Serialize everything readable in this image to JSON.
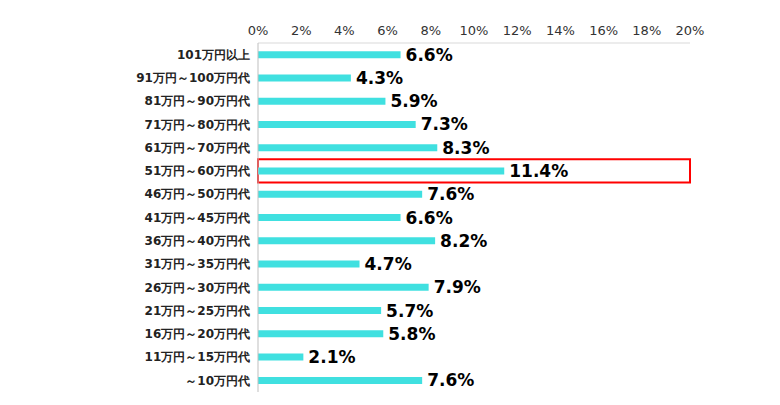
{
  "chart_data": {
    "type": "bar",
    "orientation": "horizontal",
    "categories": [
      "101万円以上",
      "91万円～100万円代",
      "81万円～90万円代",
      "71万円～80万円代",
      "61万円～70万円代",
      "51万円～60万円代",
      "46万円～50万円代",
      "41万円～45万円代",
      "36万円～40万円代",
      "31万円～35万円代",
      "26万円～30万円代",
      "21万円～25万円代",
      "16万円～20万円代",
      "11万円～15万円代",
      "～10万円代"
    ],
    "values": [
      6.6,
      4.3,
      5.9,
      7.3,
      8.3,
      11.4,
      7.6,
      6.6,
      8.2,
      4.7,
      7.9,
      5.7,
      5.8,
      2.1,
      7.6
    ],
    "value_labels": [
      "6.6%",
      "4.3%",
      "5.9%",
      "7.3%",
      "8.3%",
      "11.4%",
      "7.6%",
      "6.6%",
      "8.2%",
      "4.7%",
      "7.9%",
      "5.7%",
      "5.8%",
      "2.1%",
      "7.6%"
    ],
    "data_labels": true,
    "color": "#40e0e0",
    "xlim": [
      0,
      20
    ],
    "xticks": [
      {
        "value": 0,
        "label": "0%"
      },
      {
        "value": 2,
        "label": "2%"
      },
      {
        "value": 4,
        "label": "4%"
      },
      {
        "value": 6,
        "label": "6%"
      },
      {
        "value": 8,
        "label": "8%"
      },
      {
        "value": 10,
        "label": "10%"
      },
      {
        "value": 12,
        "label": "12%"
      },
      {
        "value": 14,
        "label": "14%"
      },
      {
        "value": 16,
        "label": "16%"
      },
      {
        "value": 18,
        "label": "18%"
      },
      {
        "value": 20,
        "label": "20%"
      }
    ],
    "grid": false
  }
}
